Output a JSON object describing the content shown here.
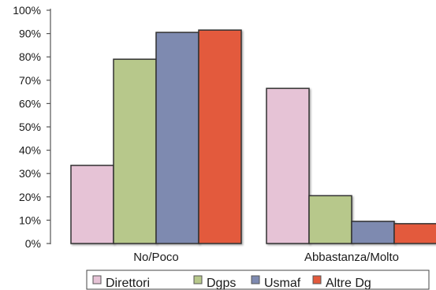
{
  "chart_data": {
    "type": "bar",
    "categories": [
      "No/Poco",
      "Abbastanza/Molto"
    ],
    "series": [
      {
        "name": "Direttori",
        "color": "#e6c3d6",
        "values": [
          33.5,
          66.5
        ]
      },
      {
        "name": "Dgps",
        "color": "#b7c88b",
        "values": [
          79,
          20.5
        ]
      },
      {
        "name": "Usmaf",
        "color": "#7e8ab0",
        "values": [
          90.5,
          9.5
        ]
      },
      {
        "name": "Altre Dg",
        "color": "#e35a3d",
        "values": [
          91.5,
          8.5
        ]
      }
    ],
    "yticks": [
      "0%",
      "10%",
      "20%",
      "30%",
      "40%",
      "50%",
      "60%",
      "70%",
      "80%",
      "90%",
      "100%"
    ],
    "ylim": [
      0,
      100
    ],
    "legend_position": "bottom"
  }
}
